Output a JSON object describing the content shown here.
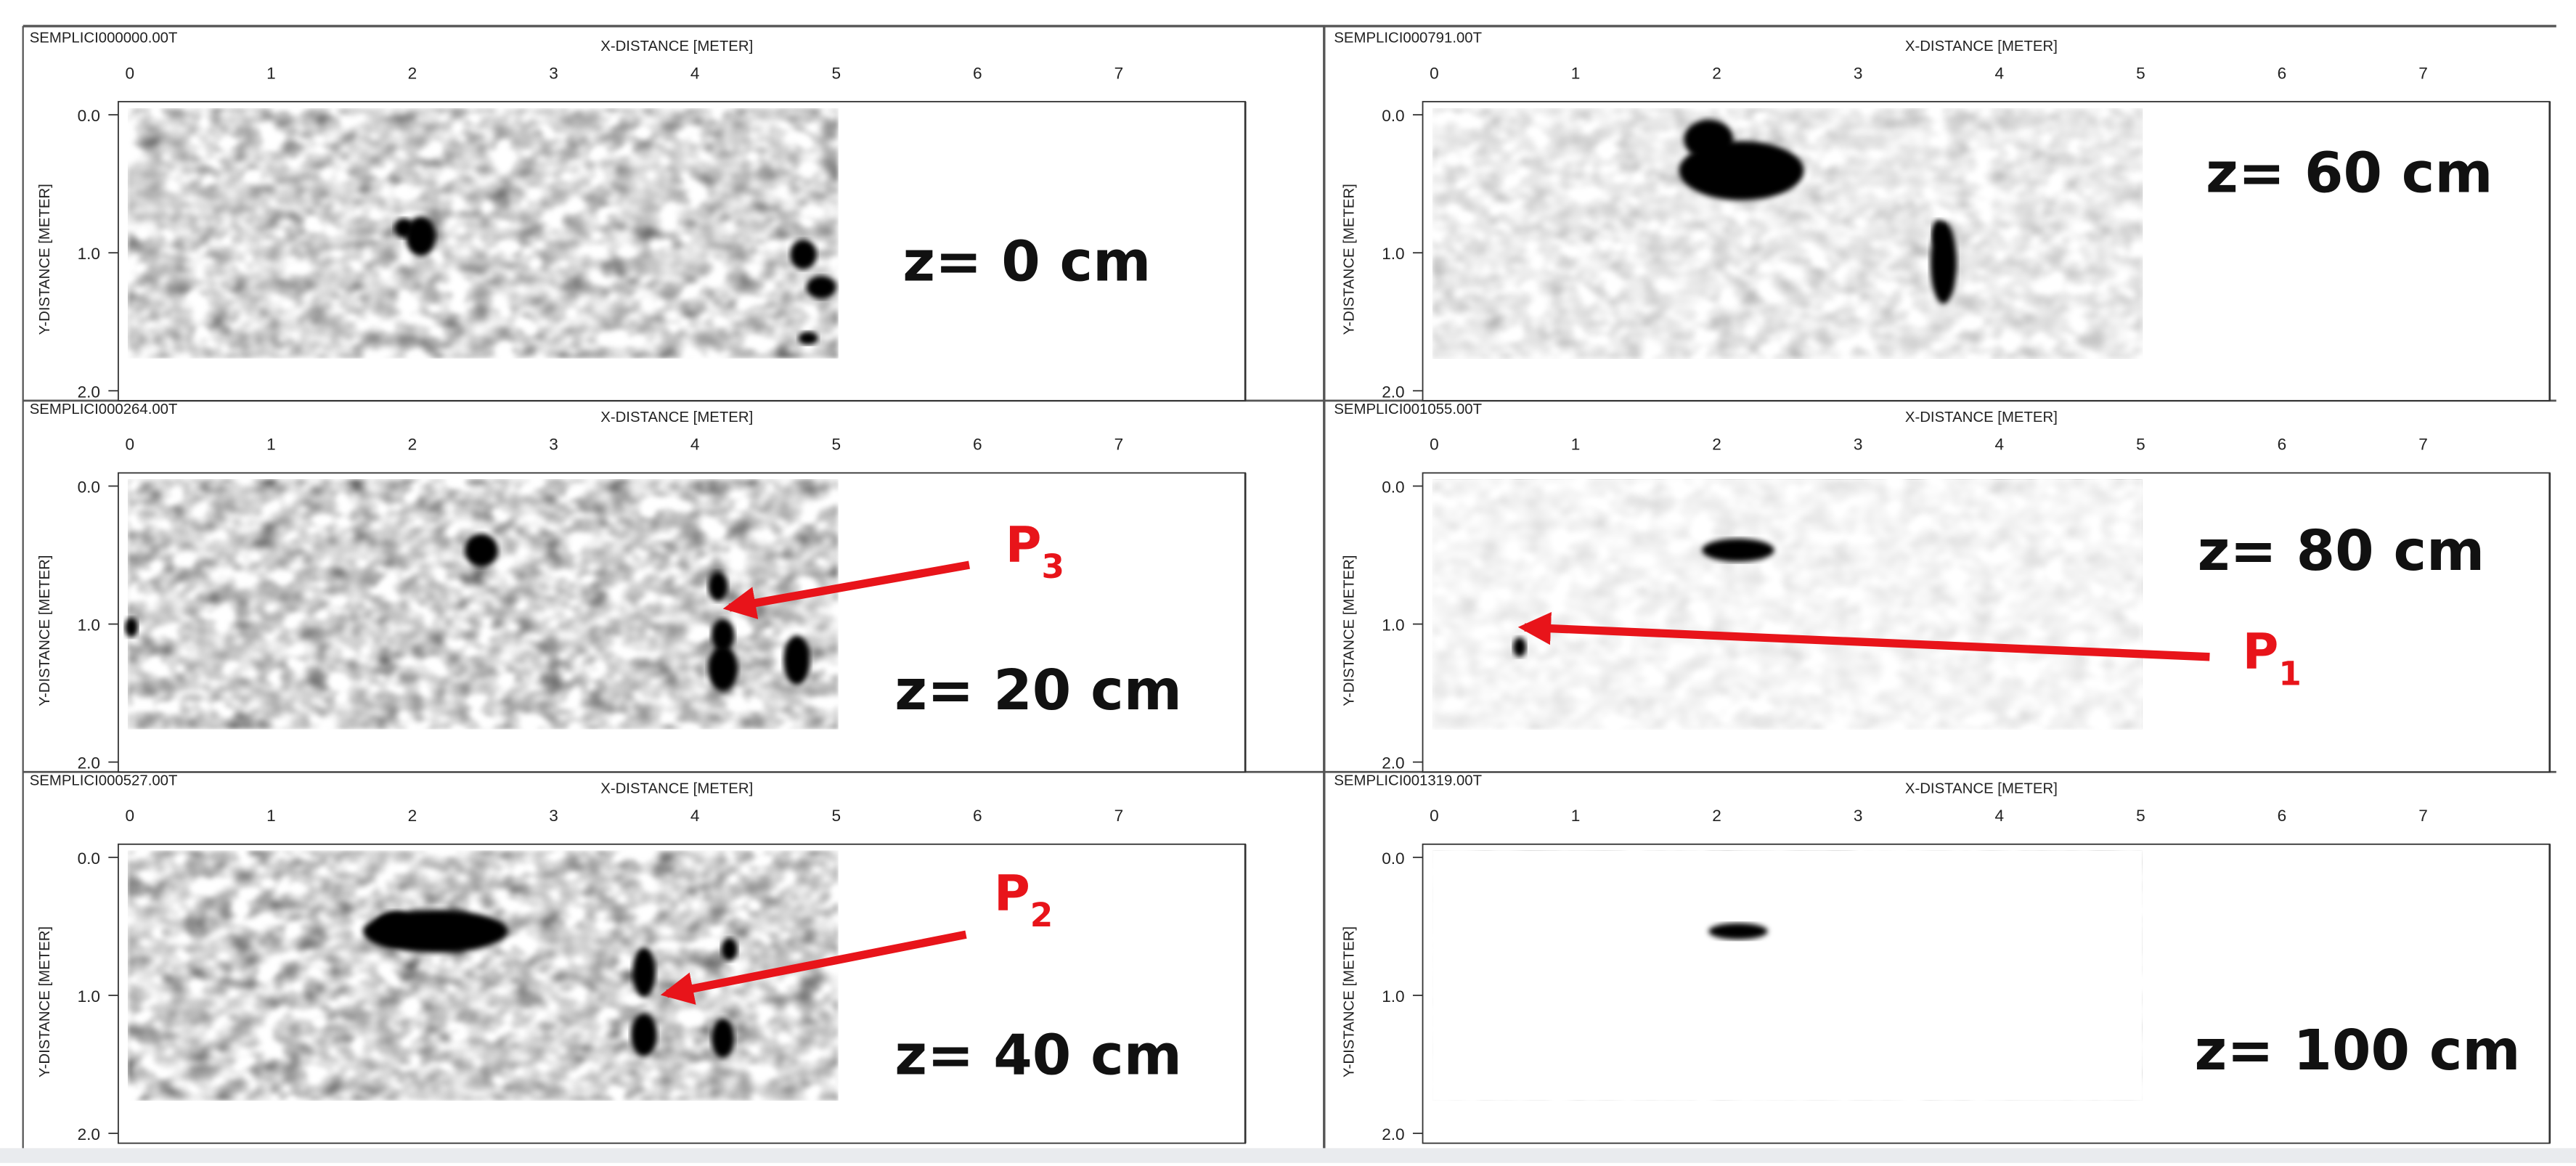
{
  "panels": [
    {
      "filename": "SEMPLICI000000.00T",
      "x_axis_label": "X-DISTANCE [METER]",
      "y_axis_label": "Y-DISTANCE [METER]",
      "x_ticks": [
        "0",
        "1",
        "2",
        "3",
        "4",
        "5",
        "6",
        "7"
      ],
      "y_ticks": [
        "0.0",
        "1.0",
        "2.0"
      ],
      "depth_label": "z= 0 cm"
    },
    {
      "filename": "SEMPLICI000791.00T",
      "x_axis_label": "X-DISTANCE [METER]",
      "y_axis_label": "Y-DISTANCE [METER]",
      "x_ticks": [
        "0",
        "1",
        "2",
        "3",
        "4",
        "5",
        "6",
        "7"
      ],
      "y_ticks": [
        "0.0",
        "1.0",
        "2.0"
      ],
      "depth_label": "z= 60 cm"
    },
    {
      "filename": "SEMPLICI000264.00T",
      "x_axis_label": "X-DISTANCE [METER]",
      "y_axis_label": "Y-DISTANCE [METER]",
      "x_ticks": [
        "0",
        "1",
        "2",
        "3",
        "4",
        "5",
        "6",
        "7"
      ],
      "y_ticks": [
        "0.0",
        "1.0",
        "2.0"
      ],
      "depth_label": "z= 20 cm",
      "annotation": {
        "label": "P",
        "subscript": "3"
      }
    },
    {
      "filename": "SEMPLICI001055.00T",
      "x_axis_label": "X-DISTANCE [METER]",
      "y_axis_label": "Y-DISTANCE [METER]",
      "x_ticks": [
        "0",
        "1",
        "2",
        "3",
        "4",
        "5",
        "6",
        "7"
      ],
      "y_ticks": [
        "0.0",
        "1.0",
        "2.0"
      ],
      "depth_label": "z= 80 cm",
      "annotation": {
        "label": "P",
        "subscript": "1"
      }
    },
    {
      "filename": "SEMPLICI000527.00T",
      "x_axis_label": "X-DISTANCE [METER]",
      "y_axis_label": "Y-DISTANCE [METER]",
      "x_ticks": [
        "0",
        "1",
        "2",
        "3",
        "4",
        "5",
        "6",
        "7"
      ],
      "y_ticks": [
        "0.0",
        "1.0",
        "2.0"
      ],
      "depth_label": "z= 40 cm",
      "annotation": {
        "label": "P",
        "subscript": "2"
      }
    },
    {
      "filename": "SEMPLICI001319.00T",
      "x_axis_label": "X-DISTANCE [METER]",
      "y_axis_label": "Y-DISTANCE [METER]",
      "x_ticks": [
        "0",
        "1",
        "2",
        "3",
        "4",
        "5",
        "6",
        "7"
      ],
      "y_ticks": [
        "0.0",
        "1.0",
        "2.0"
      ],
      "depth_label": "z= 100 cm"
    }
  ]
}
